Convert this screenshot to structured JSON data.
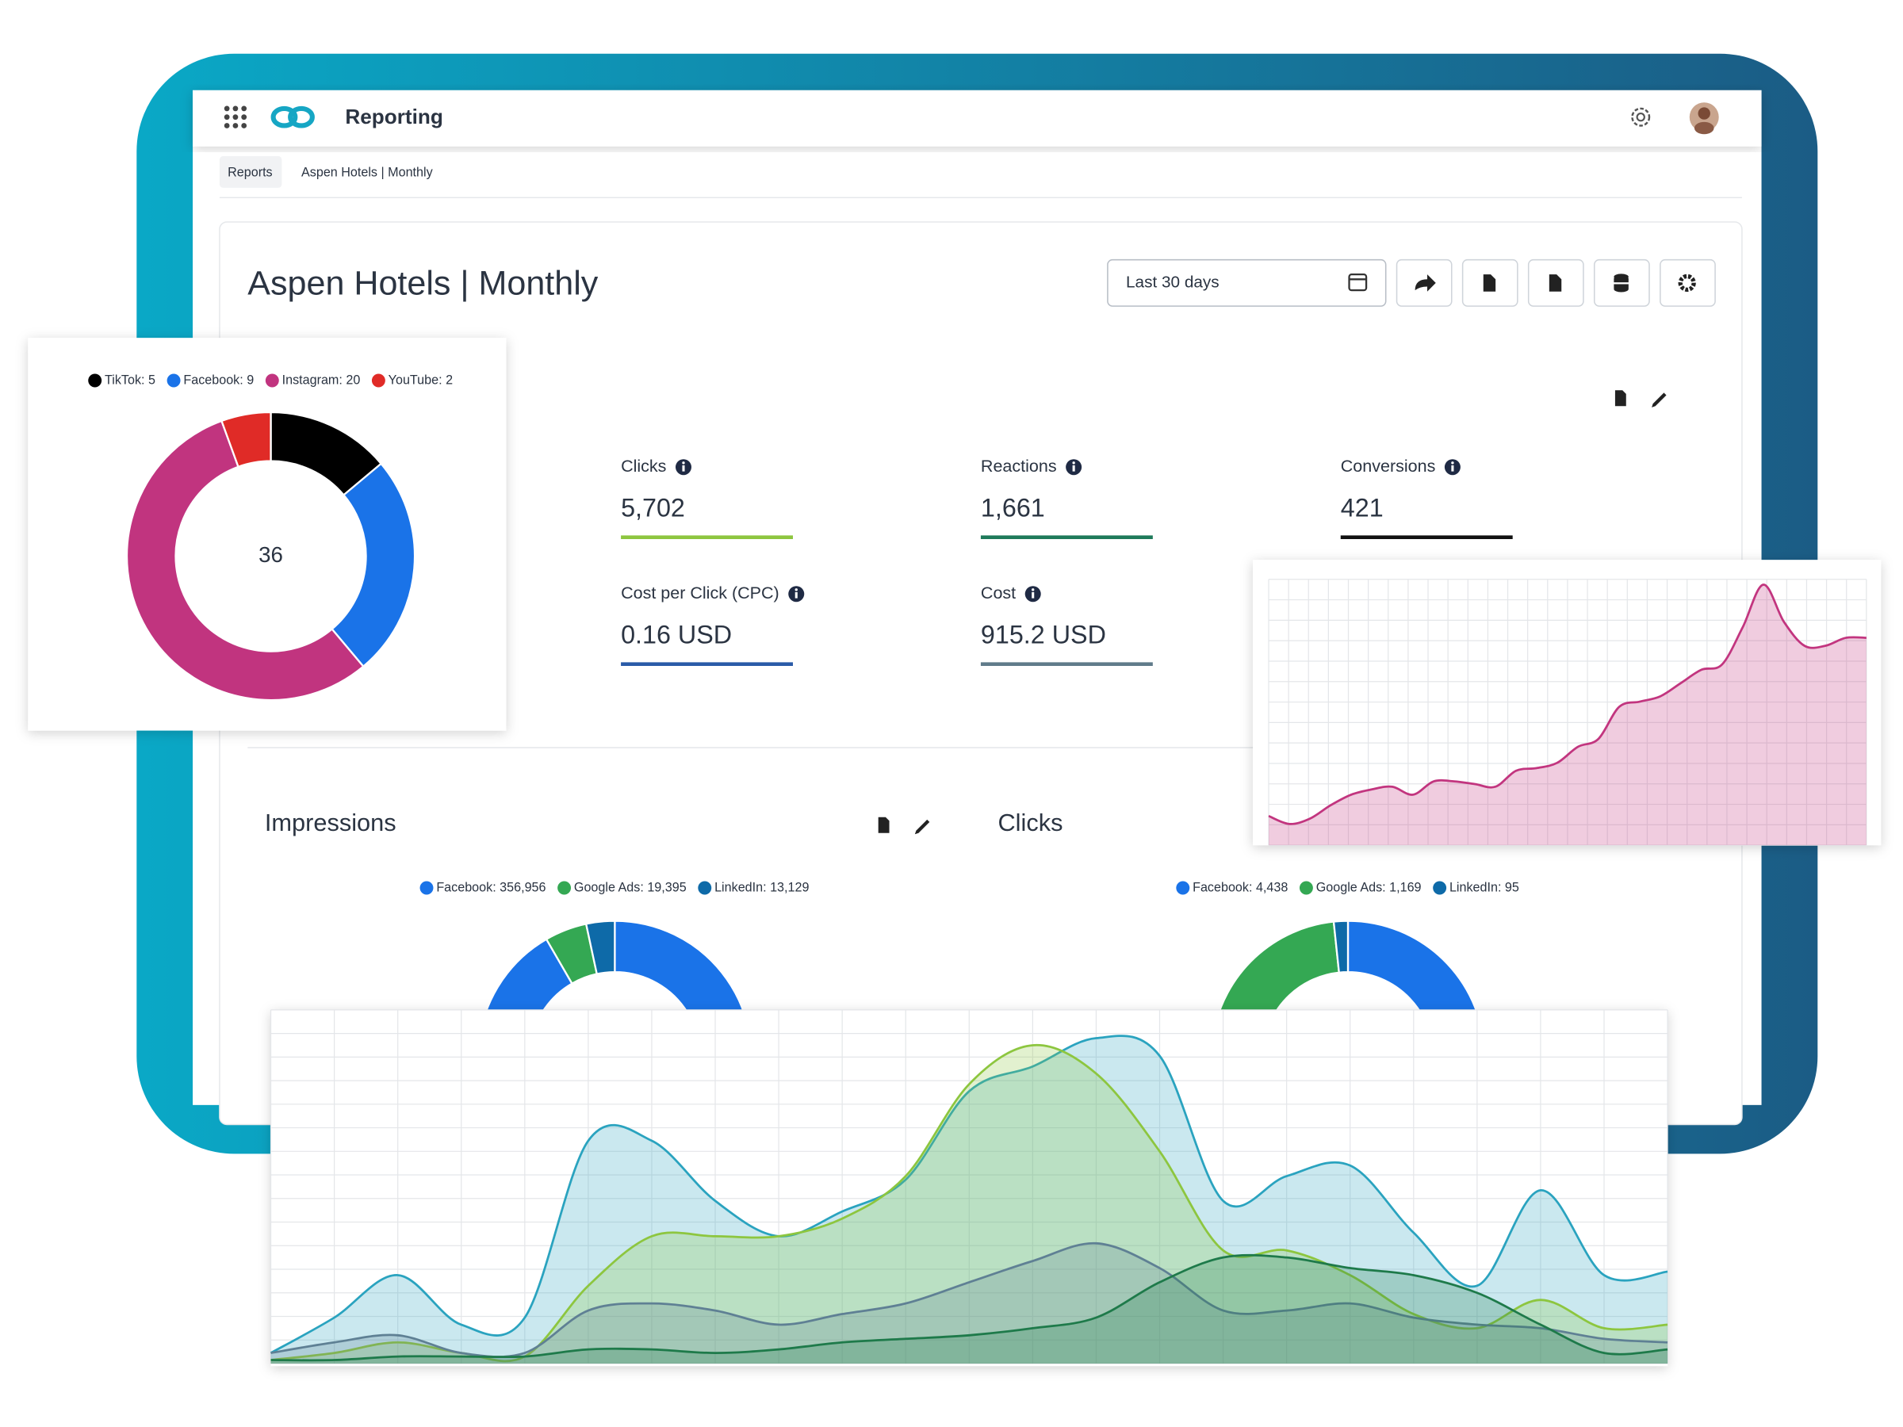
{
  "header": {
    "app": "Reporting"
  },
  "breadcrumb": [
    "Reports",
    "Aspen Hotels | Monthly"
  ],
  "report": {
    "title": "Aspen Hotels | Monthly",
    "date_range": "Last 30 days"
  },
  "metrics": [
    {
      "label": "Clicks",
      "value": "5,702",
      "color": "#8dc63f"
    },
    {
      "label": "Reactions",
      "value": "1,661",
      "color": "#1e7a5a"
    },
    {
      "label": "Conversions",
      "value": "421",
      "color": "#111111"
    },
    {
      "label": "Cost per Click (CPC)",
      "value": "0.16 USD",
      "color": "#2a5ba8"
    },
    {
      "label": "Cost",
      "value": "915.2 USD",
      "color": "#607b8a"
    }
  ],
  "chart_data": [
    {
      "type": "donut",
      "total": 36,
      "legend": [
        {
          "label": "TikTok: 5",
          "value": 5,
          "color": "#000000"
        },
        {
          "label": "Facebook: 9",
          "value": 9,
          "color": "#1a73e8"
        },
        {
          "label": "Instagram: 20",
          "value": 20,
          "color": "#c1347f"
        },
        {
          "label": "YouTube: 2",
          "value": 2,
          "color": "#e02b27"
        }
      ]
    },
    {
      "type": "donut",
      "title": "Impressions",
      "legend": [
        {
          "label": "Facebook: 356,956",
          "value": 356956,
          "color": "#1a73e8"
        },
        {
          "label": "Google Ads: 19,395",
          "value": 19395,
          "color": "#34a853"
        },
        {
          "label": "LinkedIn: 13,129",
          "value": 13129,
          "color": "#0e6aa8"
        }
      ]
    },
    {
      "type": "donut",
      "title": "Clicks",
      "legend": [
        {
          "label": "Facebook: 4,438",
          "value": 4438,
          "color": "#1a73e8"
        },
        {
          "label": "Google Ads: 1,169",
          "value": 1169,
          "color": "#34a853"
        },
        {
          "label": "LinkedIn: 95",
          "value": 95,
          "color": "#0e6aa8"
        }
      ]
    },
    {
      "type": "area",
      "ylim": [
        0,
        100
      ],
      "grid": true,
      "color": "#c2357f",
      "values": [
        11,
        8,
        10,
        15,
        19,
        21,
        22,
        19,
        24,
        24,
        23,
        22,
        28,
        29,
        31,
        37,
        40,
        52,
        54,
        56,
        61,
        66,
        68,
        82,
        98,
        84,
        75,
        75,
        78,
        78
      ]
    },
    {
      "type": "area",
      "ylim": [
        0,
        100
      ],
      "grid": true,
      "series": [
        {
          "color": "#2aa3bf",
          "values": [
            3,
            13,
            25,
            11,
            13,
            63,
            63,
            46,
            36,
            43,
            52,
            77,
            84,
            92,
            87,
            46,
            53,
            56,
            37,
            22,
            49,
            25,
            26
          ]
        },
        {
          "color": "#8dc63f",
          "values": [
            1,
            3,
            6,
            3,
            2,
            22,
            36,
            36,
            36,
            41,
            53,
            79,
            90,
            82,
            60,
            32,
            32,
            25,
            14,
            10,
            18,
            10,
            11
          ]
        },
        {
          "color": "#5f8094",
          "values": [
            3,
            6,
            8,
            3,
            3,
            15,
            17,
            15,
            11,
            14,
            17,
            23,
            29,
            34,
            27,
            15,
            15,
            17,
            13,
            11,
            10,
            7,
            6
          ]
        },
        {
          "color": "#1e7a4a",
          "values": [
            1,
            1,
            2,
            2,
            2,
            4,
            4,
            3,
            4,
            6,
            7,
            8,
            10,
            13,
            23,
            30,
            30,
            27,
            25,
            20,
            11,
            3,
            4
          ]
        }
      ]
    }
  ]
}
